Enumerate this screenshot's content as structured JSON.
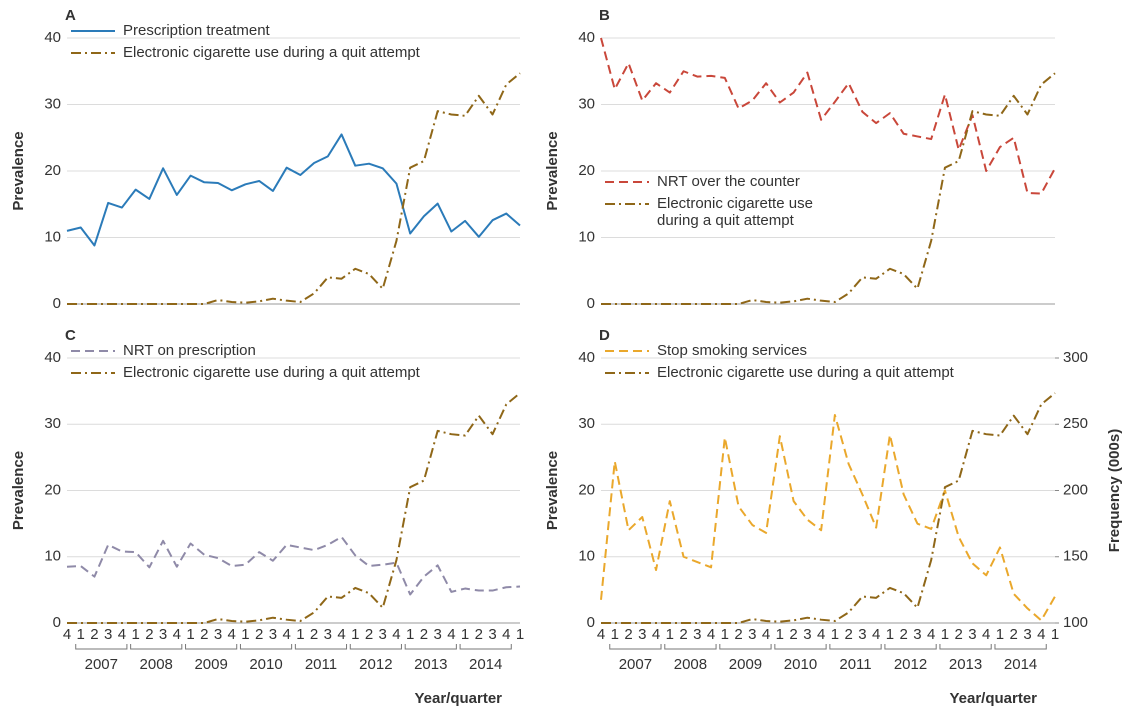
{
  "chart_data": [
    {
      "type": "line",
      "panel_label": "A",
      "ylabel": "Prevalence",
      "ylim": [
        0,
        40
      ],
      "yticks": [
        0,
        10,
        20,
        30,
        40
      ],
      "grid": true,
      "legend": "upper left",
      "series": [
        {
          "name": "Prescription treatment",
          "color": "#2b7bb9",
          "style": "solid",
          "values": [
            11,
            11.5,
            8.8,
            15.2,
            14.5,
            17.2,
            15.8,
            20.4,
            16.4,
            19.3,
            18.3,
            18.2,
            17.1,
            18,
            18.5,
            17,
            20.5,
            19.4,
            21.2,
            22.2,
            25.5,
            20.8,
            21.1,
            20.4,
            18.1,
            10.6,
            13.2,
            15.1,
            10.9,
            12.5,
            10.1,
            12.6,
            13.6,
            11.8
          ]
        },
        {
          "name": "Electronic cigarette use during a quit attempt",
          "color": "#8f6718",
          "style": "dashdot",
          "values": [
            0,
            0,
            0,
            0,
            0,
            0,
            0,
            0,
            0,
            0,
            0,
            0.6,
            0.3,
            0.2,
            0.4,
            0.8,
            0.5,
            0.3,
            1.6,
            4.0,
            3.8,
            5.3,
            4.5,
            2.3,
            9.5,
            20.5,
            21.5,
            29,
            28.5,
            28.3,
            31.3,
            28.5,
            33,
            34.7
          ]
        }
      ]
    },
    {
      "type": "line",
      "panel_label": "B",
      "ylabel": "Prevalence",
      "ylim": [
        0,
        40
      ],
      "yticks": [
        0,
        10,
        20,
        30,
        40
      ],
      "grid": true,
      "legend": "center left",
      "series": [
        {
          "name": "NRT over the counter",
          "color": "#c9473a",
          "style": "dashed",
          "values": [
            40,
            32.3,
            36.2,
            30.6,
            33.2,
            31.8,
            35,
            34.2,
            34.3,
            34,
            29.4,
            30.6,
            33.2,
            30.3,
            31.8,
            34.8,
            27.7,
            30.4,
            33.2,
            28.9,
            27.2,
            28.7,
            25.6,
            25.2,
            24.8,
            31.5,
            23.2,
            28.4,
            20,
            23.6,
            25,
            16.7,
            16.6,
            20.4
          ]
        },
        {
          "name": "Electronic cigarette use during a quit attempt",
          "color": "#8f6718",
          "style": "dashdot",
          "values": [
            0,
            0,
            0,
            0,
            0,
            0,
            0,
            0,
            0,
            0,
            0,
            0.6,
            0.3,
            0.2,
            0.4,
            0.8,
            0.5,
            0.3,
            1.6,
            4.0,
            3.8,
            5.3,
            4.5,
            2.3,
            9.5,
            20.5,
            21.5,
            29,
            28.5,
            28.3,
            31.3,
            28.5,
            33,
            34.7
          ]
        }
      ]
    },
    {
      "type": "line",
      "panel_label": "C",
      "ylabel": "Prevalence",
      "xlabel": "Year/quarter",
      "ylim": [
        0,
        40
      ],
      "yticks": [
        0,
        10,
        20,
        30,
        40
      ],
      "grid": true,
      "legend": "upper left",
      "categories": [
        "4",
        "1",
        "2",
        "3",
        "4",
        "1",
        "2",
        "3",
        "4",
        "1",
        "2",
        "3",
        "4",
        "1",
        "2",
        "3",
        "4",
        "1",
        "2",
        "3",
        "4",
        "1",
        "2",
        "3",
        "4",
        "1",
        "2",
        "3",
        "4",
        "1",
        "2",
        "3",
        "4",
        "1"
      ],
      "year_labels": [
        "2007",
        "2008",
        "2009",
        "2010",
        "2011",
        "2012",
        "2013",
        "2014"
      ],
      "series": [
        {
          "name": "NRT on prescription",
          "color": "#8f8aa8",
          "style": "dashed",
          "values": [
            8.5,
            8.6,
            7,
            11.8,
            10.8,
            10.7,
            8.4,
            12.4,
            8.5,
            12,
            10.3,
            9.8,
            8.6,
            8.8,
            10.7,
            9.4,
            11.8,
            11.4,
            11,
            11.8,
            13,
            10.2,
            8.6,
            8.8,
            9.1,
            4.3,
            7,
            8.7,
            4.7,
            5.2,
            4.9,
            4.9,
            5.4,
            5.5
          ]
        },
        {
          "name": "Electronic cigarette use during a quit attempt",
          "color": "#8f6718",
          "style": "dashdot",
          "values": [
            0,
            0,
            0,
            0,
            0,
            0,
            0,
            0,
            0,
            0,
            0,
            0.6,
            0.3,
            0.2,
            0.4,
            0.8,
            0.5,
            0.3,
            1.6,
            4.0,
            3.8,
            5.3,
            4.5,
            2.3,
            9.5,
            20.5,
            21.5,
            29,
            28.5,
            28.3,
            31.3,
            28.5,
            33,
            34.7
          ]
        }
      ]
    },
    {
      "type": "line",
      "panel_label": "D",
      "ylabel": "Prevalence",
      "y2label": "Frequency (000s)",
      "xlabel": "Year/quarter",
      "ylim": [
        0,
        40
      ],
      "yticks": [
        0,
        10,
        20,
        30,
        40
      ],
      "y2lim": [
        100,
        300
      ],
      "y2ticks": [
        100,
        150,
        200,
        250,
        300
      ],
      "grid": true,
      "legend": "upper left",
      "categories": [
        "4",
        "1",
        "2",
        "3",
        "4",
        "1",
        "2",
        "3",
        "4",
        "1",
        "2",
        "3",
        "4",
        "1",
        "2",
        "3",
        "4",
        "1",
        "2",
        "3",
        "4",
        "1",
        "2",
        "3",
        "4",
        "1",
        "2",
        "3",
        "4",
        "1",
        "2",
        "3",
        "4",
        "1"
      ],
      "year_labels": [
        "2007",
        "2008",
        "2009",
        "2010",
        "2011",
        "2012",
        "2013",
        "2014"
      ],
      "series": [
        {
          "name": "Stop smoking services",
          "color": "#eaa82c",
          "style": "dashed",
          "axis": "y2",
          "values": [
            117.5,
            222,
            170,
            180,
            140,
            192,
            150,
            146,
            142,
            240,
            188,
            174,
            168,
            241,
            192,
            178,
            170,
            257,
            220,
            197,
            172,
            242,
            197,
            175,
            171,
            200,
            165,
            145,
            136,
            157,
            122,
            111,
            102,
            120
          ]
        },
        {
          "name": "Electronic cigarette use during a quit attempt",
          "color": "#8f6718",
          "style": "dashdot",
          "values": [
            0,
            0,
            0,
            0,
            0,
            0,
            0,
            0,
            0,
            0,
            0,
            0.6,
            0.3,
            0.2,
            0.4,
            0.8,
            0.5,
            0.3,
            1.6,
            4.0,
            3.8,
            5.3,
            4.5,
            2.3,
            9.5,
            20.5,
            21.5,
            29,
            28.5,
            28.3,
            31.3,
            28.5,
            33,
            34.7
          ]
        }
      ]
    }
  ]
}
